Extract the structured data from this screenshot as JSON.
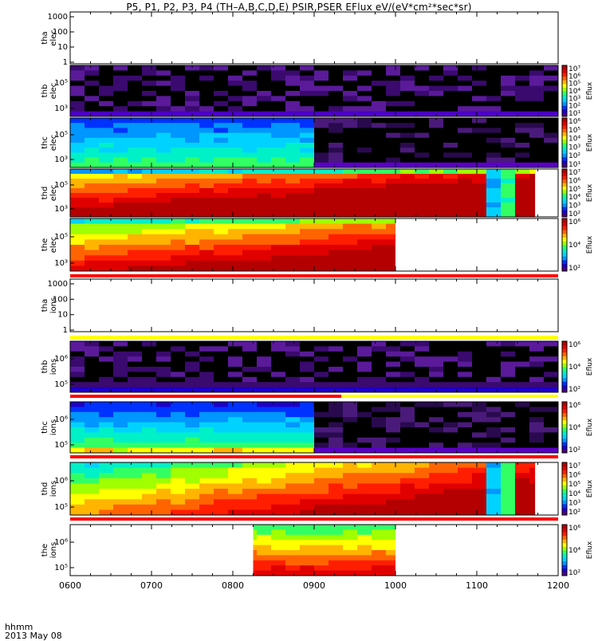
{
  "title": "P5, P1, P2, P3, P4 (TH–A,B,C,D,E) PSIR,PSER EFlux eV/(eV*cm²*sec*sr)",
  "time_label": "hhmm",
  "date_label": "2013 May 08",
  "colors": {
    "spectrogram_scale": [
      "#4b0082",
      "#1e00c8",
      "#0032ff",
      "#0096ff",
      "#00d2ff",
      "#00f0c8",
      "#32ff64",
      "#a0ff00",
      "#ffff00",
      "#ffb400",
      "#ff6400",
      "#ff1e00",
      "#e10000",
      "#b40000"
    ],
    "status_red": "#ff0000",
    "status_yellow": "#ffff00",
    "no_data_black": "#000000"
  },
  "chart_data": {
    "type": "heatmap",
    "x_axis": {
      "range": [
        "0600",
        "1200"
      ],
      "ticks": [
        "0600",
        "0700",
        "0800",
        "0900",
        "1000",
        "1100",
        "1200"
      ]
    },
    "colorbar_label": "Eflux",
    "panels": [
      {
        "id": "tha-elec",
        "label": [
          "tha",
          "elec"
        ],
        "log": true,
        "y_ticks": [
          "1",
          "10",
          "100",
          "1000"
        ],
        "y_ticks_html": [],
        "colorbar_ticks": [],
        "data_end": null,
        "state": "empty",
        "status_bars_after": []
      },
      {
        "id": "thb-elec",
        "label": [
          "thb",
          "elec"
        ],
        "log": true,
        "y_ticks": [],
        "y_ticks_html": [
          "10³",
          "10⁵"
        ],
        "colorbar_ticks": [
          "10¹",
          "10²",
          "10³",
          "10⁴",
          "10⁵",
          "10⁶",
          "10⁷"
        ],
        "data_end": "1200",
        "state": "background",
        "status_bars_after": []
      },
      {
        "id": "thc-elec",
        "label": [
          "thc",
          "elec"
        ],
        "log": true,
        "y_ticks": [],
        "y_ticks_html": [
          "10³",
          "10⁵"
        ],
        "colorbar_ticks": [
          "10¹",
          "10²",
          "10³",
          "10⁴",
          "10⁵",
          "10⁶"
        ],
        "data_end": "1200",
        "state": "gap_at_0853",
        "status_bars_after": []
      },
      {
        "id": "thd-elec",
        "label": [
          "thd",
          "elec"
        ],
        "log": true,
        "y_ticks": [],
        "y_ticks_html": [
          "10³",
          "10⁵"
        ],
        "colorbar_ticks": [
          "10²",
          "10³",
          "10⁴",
          "10⁵",
          "10⁶",
          "10⁷"
        ],
        "data_end": "1143",
        "state": "full",
        "status_bars_after": []
      },
      {
        "id": "the-elec",
        "label": [
          "the",
          "elec"
        ],
        "log": true,
        "y_ticks": [],
        "y_ticks_html": [
          "10³",
          "10⁵"
        ],
        "colorbar_ticks": [
          "10²",
          "10⁴",
          "10⁶"
        ],
        "data_end": "1000",
        "state": "full",
        "status_bars_after": [
          "red"
        ]
      },
      {
        "id": "tha-ions",
        "label": [
          "tha",
          "ions"
        ],
        "log": true,
        "y_ticks": [
          "1",
          "10",
          "100",
          "1000"
        ],
        "y_ticks_html": [],
        "colorbar_ticks": [],
        "data_end": null,
        "state": "empty",
        "status_bars_after": [
          "yellow"
        ]
      },
      {
        "id": "thb-ions",
        "label": [
          "thb",
          "ions"
        ],
        "log": true,
        "y_ticks": [],
        "y_ticks_html": [
          "10⁵",
          "10⁶"
        ],
        "colorbar_ticks": [
          "10²",
          "10⁴",
          "10⁶"
        ],
        "data_end": "1200",
        "state": "background_low",
        "status_bars_after": [
          "red_yellow"
        ]
      },
      {
        "id": "thc-ions",
        "label": [
          "thc",
          "ions"
        ],
        "log": true,
        "y_ticks": [],
        "y_ticks_html": [
          "10⁵",
          "10⁶"
        ],
        "colorbar_ticks": [
          "10²",
          "10⁴",
          "10⁶"
        ],
        "data_end": "1200",
        "state": "gap_at_0853",
        "status_bars_after": [
          "red"
        ]
      },
      {
        "id": "thd-ions",
        "label": [
          "thd",
          "ions"
        ],
        "log": true,
        "y_ticks": [],
        "y_ticks_html": [
          "10⁵",
          "10⁶"
        ],
        "colorbar_ticks": [
          "10²",
          "10³",
          "10⁴",
          "10⁵",
          "10⁶",
          "10⁷"
        ],
        "data_end": "1143",
        "state": "full",
        "status_bars_after": [
          "red"
        ]
      },
      {
        "id": "the-ions",
        "label": [
          "the",
          "ions"
        ],
        "log": true,
        "y_ticks": [],
        "y_ticks_html": [
          "10⁵",
          "10⁶"
        ],
        "colorbar_ticks": [
          "10²",
          "10⁴",
          "10⁶"
        ],
        "data_start": "0815",
        "data_end": "1000",
        "state": "window",
        "status_bars_after": []
      }
    ]
  }
}
